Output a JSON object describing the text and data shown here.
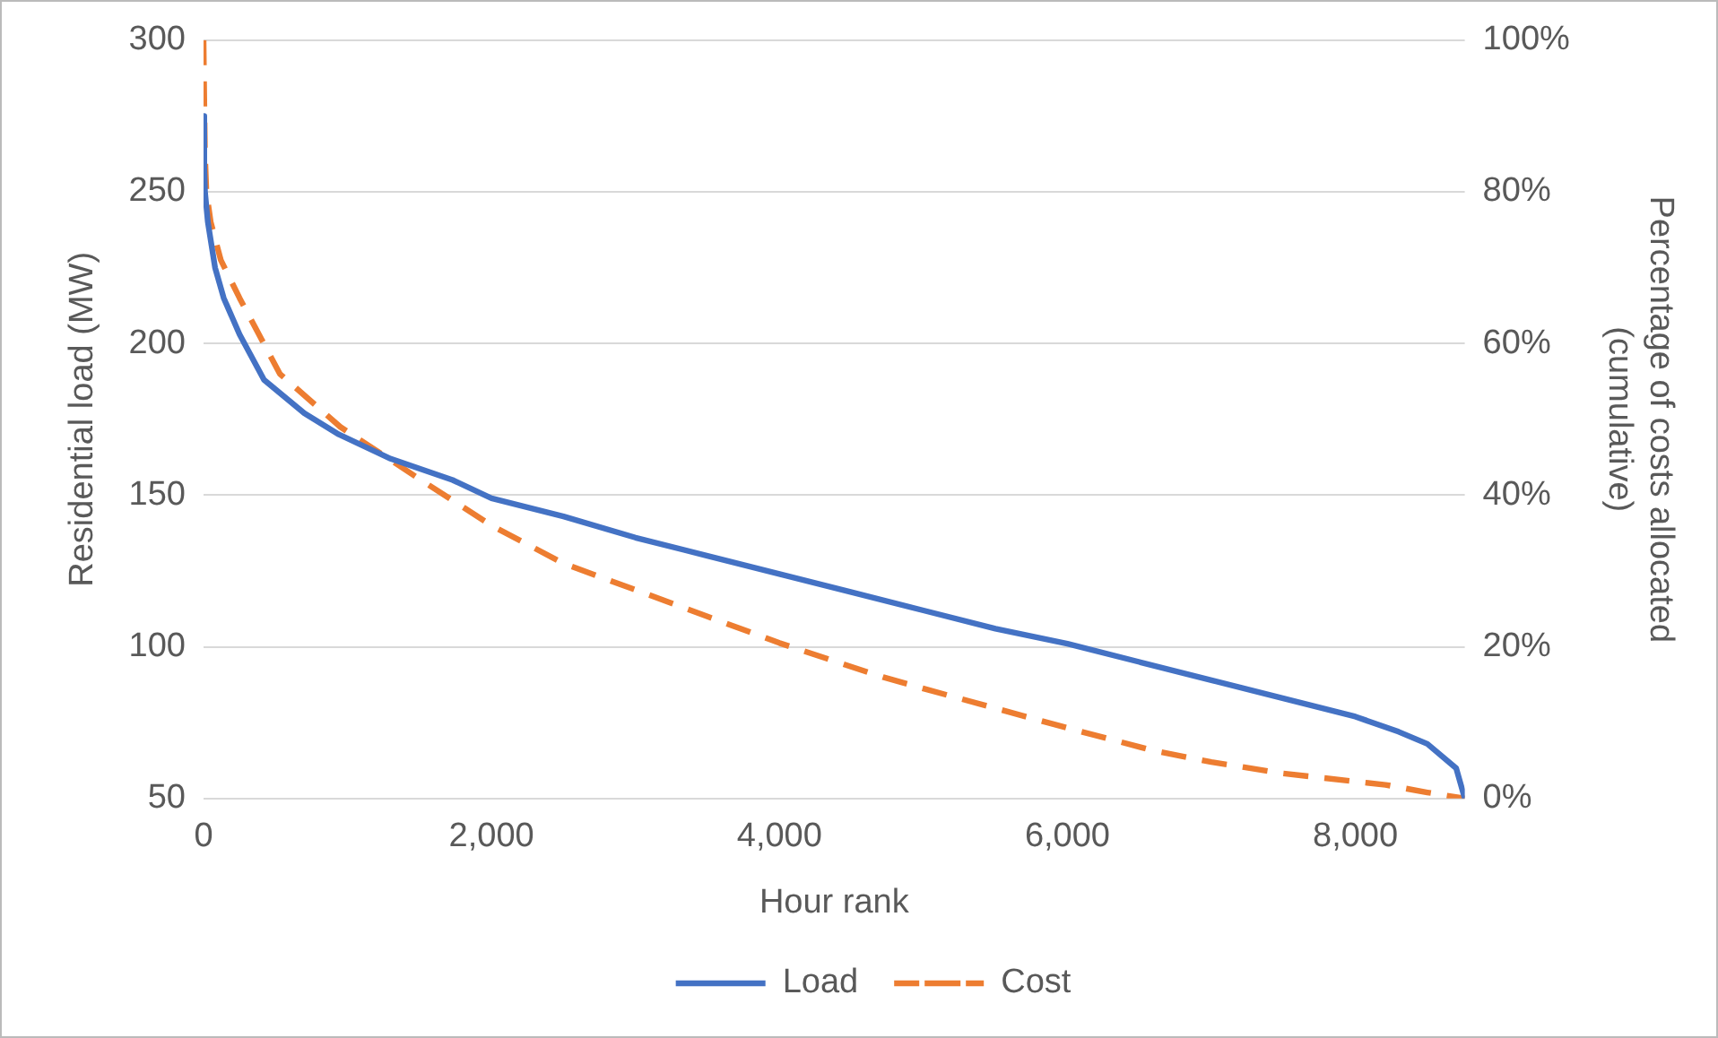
{
  "chart_data": {
    "type": "line",
    "xlabel": "Hour rank",
    "ylabel": "Residential load (MW)",
    "y2label": "Percentage of costs allocated (cumulative)",
    "xlim": [
      0,
      8760
    ],
    "xticks": [
      0,
      {
        "value": 2000,
        "label": "2,000"
      },
      {
        "value": 4000,
        "label": "4,000"
      },
      {
        "value": 6000,
        "label": "6,000"
      },
      {
        "value": 8000,
        "label": "8,000"
      }
    ],
    "ylim": [
      50,
      300
    ],
    "yticks": [
      50,
      100,
      150,
      200,
      250,
      300
    ],
    "y2lim": [
      0,
      100
    ],
    "y2ticks": [
      {
        "value": 0,
        "label": "0%"
      },
      {
        "value": 20,
        "label": "20%"
      },
      {
        "value": 40,
        "label": "40%"
      },
      {
        "value": 60,
        "label": "60%"
      },
      {
        "value": 80,
        "label": "80%"
      },
      {
        "value": 100,
        "label": "100%"
      }
    ],
    "grid": "y",
    "legend": "bottom",
    "marker": "none",
    "series": [
      {
        "name": "Load",
        "color": "#4472c4",
        "line_style": "solid",
        "x": [
          0,
          5,
          10,
          30,
          80,
          140,
          250,
          420,
          700,
          940,
          1300,
          1730,
          2000,
          2500,
          3000,
          3500,
          4000,
          4500,
          5000,
          5500,
          6000,
          6500,
          7000,
          7500,
          8000,
          8300,
          8500,
          8700,
          8760
        ],
        "values": [
          275,
          258,
          250,
          240,
          225,
          215,
          203,
          188,
          177,
          170,
          162,
          155,
          149,
          143,
          136,
          130,
          124,
          118,
          112,
          106,
          101,
          95,
          89,
          83,
          77,
          72,
          68,
          60,
          50
        ]
      },
      {
        "name": "Cost",
        "color": "#ed7d31",
        "line_style": "dashed",
        "axis": "y2",
        "x": [
          0,
          5,
          10,
          20,
          50,
          120,
          250,
          530,
          950,
          1510,
          2000,
          2500,
          3000,
          3500,
          4000,
          4720,
          5000,
          6000,
          6580,
          7000,
          7500,
          8210,
          8500,
          8760
        ],
        "values": [
          100,
          92,
          85,
          80,
          76,
          71,
          66,
          56,
          49,
          42,
          36,
          31,
          27.5,
          24,
          20.5,
          16,
          14.5,
          9.3,
          6.4,
          4.8,
          3.3,
          1.8,
          0.8,
          0
        ]
      }
    ]
  }
}
